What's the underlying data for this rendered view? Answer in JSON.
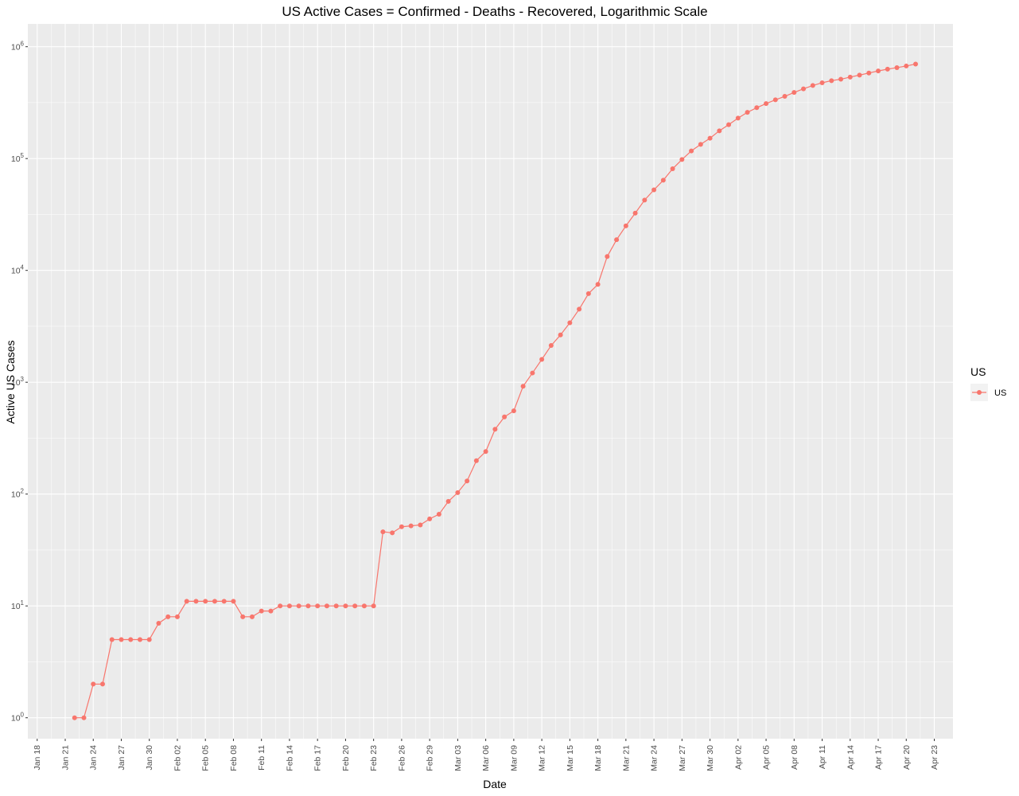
{
  "chart_data": {
    "type": "line",
    "title": "US Active Cases = Confirmed - Deaths - Recovered, Logarithmic Scale",
    "xlabel": "Date",
    "ylabel": "Active US Cases",
    "y_scale": "log10",
    "ylim": [
      0.65,
      1600000
    ],
    "xlim": [
      "2020-01-17",
      "2020-04-25"
    ],
    "grid": true,
    "legend": {
      "title": "US",
      "placement": "right",
      "entries": [
        "US"
      ]
    },
    "series_color": "#F8766D",
    "x_ticks": [
      {
        "date": "2020-01-18",
        "label": "Jan 18"
      },
      {
        "date": "2020-01-21",
        "label": "Jan 21"
      },
      {
        "date": "2020-01-24",
        "label": "Jan 24"
      },
      {
        "date": "2020-01-27",
        "label": "Jan 27"
      },
      {
        "date": "2020-01-30",
        "label": "Jan 30"
      },
      {
        "date": "2020-02-02",
        "label": "Feb 02"
      },
      {
        "date": "2020-02-05",
        "label": "Feb 05"
      },
      {
        "date": "2020-02-08",
        "label": "Feb 08"
      },
      {
        "date": "2020-02-11",
        "label": "Feb 11"
      },
      {
        "date": "2020-02-14",
        "label": "Feb 14"
      },
      {
        "date": "2020-02-17",
        "label": "Feb 17"
      },
      {
        "date": "2020-02-20",
        "label": "Feb 20"
      },
      {
        "date": "2020-02-23",
        "label": "Feb 23"
      },
      {
        "date": "2020-02-26",
        "label": "Feb 26"
      },
      {
        "date": "2020-02-29",
        "label": "Feb 29"
      },
      {
        "date": "2020-03-03",
        "label": "Mar 03"
      },
      {
        "date": "2020-03-06",
        "label": "Mar 06"
      },
      {
        "date": "2020-03-09",
        "label": "Mar 09"
      },
      {
        "date": "2020-03-12",
        "label": "Mar 12"
      },
      {
        "date": "2020-03-15",
        "label": "Mar 15"
      },
      {
        "date": "2020-03-18",
        "label": "Mar 18"
      },
      {
        "date": "2020-03-21",
        "label": "Mar 21"
      },
      {
        "date": "2020-03-24",
        "label": "Mar 24"
      },
      {
        "date": "2020-03-27",
        "label": "Mar 27"
      },
      {
        "date": "2020-03-30",
        "label": "Mar 30"
      },
      {
        "date": "2020-04-02",
        "label": "Apr 02"
      },
      {
        "date": "2020-04-05",
        "label": "Apr 05"
      },
      {
        "date": "2020-04-08",
        "label": "Apr 08"
      },
      {
        "date": "2020-04-11",
        "label": "Apr 11"
      },
      {
        "date": "2020-04-14",
        "label": "Apr 14"
      },
      {
        "date": "2020-04-17",
        "label": "Apr 17"
      },
      {
        "date": "2020-04-20",
        "label": "Apr 20"
      },
      {
        "date": "2020-04-23",
        "label": "Apr 23"
      }
    ],
    "y_ticks": [
      {
        "value": 1,
        "base": "10",
        "exp": "0"
      },
      {
        "value": 10,
        "base": "10",
        "exp": "1"
      },
      {
        "value": 100,
        "base": "10",
        "exp": "2"
      },
      {
        "value": 1000,
        "base": "10",
        "exp": "3"
      },
      {
        "value": 10000,
        "base": "10",
        "exp": "4"
      },
      {
        "value": 100000,
        "base": "10",
        "exp": "5"
      },
      {
        "value": 1000000,
        "base": "10",
        "exp": "6"
      }
    ],
    "series": [
      {
        "name": "US",
        "x": [
          "2020-01-22",
          "2020-01-23",
          "2020-01-24",
          "2020-01-25",
          "2020-01-26",
          "2020-01-27",
          "2020-01-28",
          "2020-01-29",
          "2020-01-30",
          "2020-01-31",
          "2020-02-01",
          "2020-02-02",
          "2020-02-03",
          "2020-02-04",
          "2020-02-05",
          "2020-02-06",
          "2020-02-07",
          "2020-02-08",
          "2020-02-09",
          "2020-02-10",
          "2020-02-11",
          "2020-02-12",
          "2020-02-13",
          "2020-02-14",
          "2020-02-15",
          "2020-02-16",
          "2020-02-17",
          "2020-02-18",
          "2020-02-19",
          "2020-02-20",
          "2020-02-21",
          "2020-02-22",
          "2020-02-23",
          "2020-02-24",
          "2020-02-25",
          "2020-02-26",
          "2020-02-27",
          "2020-02-28",
          "2020-02-29",
          "2020-03-01",
          "2020-03-02",
          "2020-03-03",
          "2020-03-04",
          "2020-03-05",
          "2020-03-06",
          "2020-03-07",
          "2020-03-08",
          "2020-03-09",
          "2020-03-10",
          "2020-03-11",
          "2020-03-12",
          "2020-03-13",
          "2020-03-14",
          "2020-03-15",
          "2020-03-16",
          "2020-03-17",
          "2020-03-18",
          "2020-03-19",
          "2020-03-20",
          "2020-03-21",
          "2020-03-22",
          "2020-03-23",
          "2020-03-24",
          "2020-03-25",
          "2020-03-26",
          "2020-03-27",
          "2020-03-28",
          "2020-03-29",
          "2020-03-30",
          "2020-03-31",
          "2020-04-01",
          "2020-04-02",
          "2020-04-03",
          "2020-04-04",
          "2020-04-05",
          "2020-04-06",
          "2020-04-07",
          "2020-04-08",
          "2020-04-09",
          "2020-04-10",
          "2020-04-11",
          "2020-04-12",
          "2020-04-13",
          "2020-04-14",
          "2020-04-15",
          "2020-04-16",
          "2020-04-17",
          "2020-04-18",
          "2020-04-19",
          "2020-04-20",
          "2020-04-21"
        ],
        "y": [
          1,
          1,
          2,
          2,
          5,
          5,
          5,
          5,
          5,
          7,
          8,
          8,
          11,
          11,
          11,
          11,
          11,
          11,
          8,
          8,
          9,
          9,
          10,
          10,
          10,
          10,
          10,
          10,
          10,
          10,
          10,
          10,
          10,
          46,
          45,
          51,
          52,
          53,
          60,
          66,
          86,
          103,
          131,
          199,
          240,
          380,
          490,
          555,
          920,
          1210,
          1600,
          2130,
          2650,
          3400,
          4500,
          6200,
          7500,
          13300,
          18800,
          25000,
          32500,
          42500,
          52500,
          64000,
          81000,
          98000,
          117000,
          134000,
          152000,
          177000,
          201000,
          230000,
          259000,
          285000,
          310000,
          335000,
          360000,
          390000,
          420000,
          450000,
          476000,
          497000,
          512000,
          535000,
          557000,
          582000,
          607000,
          630000,
          650000,
          672000,
          700000
        ]
      }
    ]
  }
}
